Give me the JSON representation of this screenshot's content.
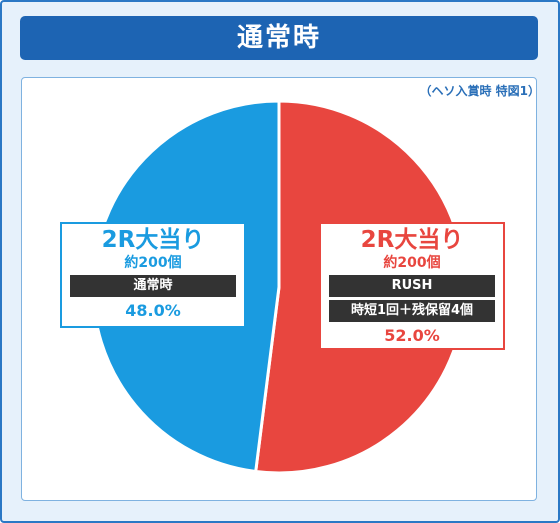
{
  "header": {
    "title": "通常時"
  },
  "note": "（ヘソ入賞時 特図1）",
  "colors": {
    "header": "#1d64b3",
    "blue": "#1a9be0",
    "red": "#e8463f",
    "dark_box": "#333333"
  },
  "chart_data": {
    "type": "pie",
    "title": "通常時",
    "note": "（ヘソ入賞時 特図1）",
    "start": "top",
    "direction": "clockwise",
    "slices": [
      {
        "label": "2R大当り",
        "sub": "約200個",
        "mode": "RUSH",
        "detail": "時短1回＋残保留4個",
        "value": 52.0,
        "display": "52.0%",
        "color": "#e8463f"
      },
      {
        "label": "2R大当り",
        "sub": "約200個",
        "mode": "通常時",
        "value": 48.0,
        "display": "48.0%",
        "color": "#1a9be0"
      }
    ]
  }
}
